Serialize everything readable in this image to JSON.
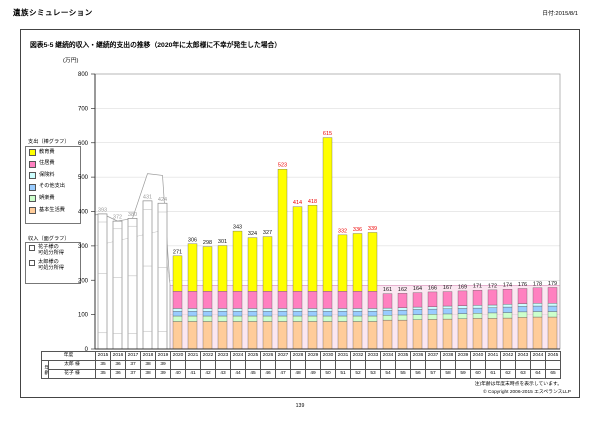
{
  "header": {
    "app_title": "遺族シミュレーション",
    "date_label": "日付:2015/8/1"
  },
  "figure": {
    "title": "図表5-5 継続的収入・継続的支出の推移（2020年に太郎様に不幸が発生した場合）"
  },
  "legend": {
    "expense": {
      "title": "支出（棒グラフ）",
      "items": [
        {
          "label": "教育費",
          "color": "#FFFF00"
        },
        {
          "label": "住居費",
          "color": "#FF80C0"
        },
        {
          "label": "保険料",
          "color": "#CCFFFF"
        },
        {
          "label": "その他支出",
          "color": "#99CCFF"
        },
        {
          "label": "娯楽費",
          "color": "#CCFFCC"
        },
        {
          "label": "基本生活費",
          "color": "#FFCC99"
        }
      ]
    },
    "income": {
      "title": "収入（面グラフ）",
      "items": [
        {
          "label": "花子様の\n可処分所得",
          "color": "#FFFFFF"
        },
        {
          "label": "太郎様の\n可処分所得",
          "color": "#FFFFFF"
        }
      ]
    }
  },
  "chart_data": {
    "type": "bar",
    "subtype": "stacked-bars-with-income-area",
    "unit_label": "(万円)",
    "ylim": [
      0,
      800
    ],
    "ytick_step": 100,
    "grid": true,
    "years": [
      2015,
      2016,
      2017,
      2018,
      2019,
      2020,
      2021,
      2022,
      2023,
      2024,
      2025,
      2026,
      2027,
      2028,
      2029,
      2030,
      2031,
      2032,
      2033,
      2034,
      2035,
      2036,
      2037,
      2038,
      2039,
      2040,
      2041,
      2042,
      2043,
      2044,
      2045
    ],
    "segment_order_bottom_up": [
      "基本生活費",
      "娯楽費",
      "その他支出",
      "保険料",
      "住居費",
      "教育費"
    ],
    "segment_colors": {
      "基本生活費": "#FFCC99",
      "娯楽費": "#CCFFCC",
      "その他支出": "#99CCFF",
      "保険料": "#CCFFFF",
      "住居費": "#FF80C0",
      "教育費": "#FFFF00"
    },
    "label_colors": {
      "gray": "#9b9b9b",
      "black": "#111111",
      "red": "#ee0000"
    },
    "bars": [
      {
        "year": 2015,
        "total": 393,
        "style": "outline",
        "label": "gray"
      },
      {
        "year": 2016,
        "total": 372,
        "style": "outline",
        "label": "gray"
      },
      {
        "year": 2017,
        "total": 380,
        "style": "outline",
        "label": "gray"
      },
      {
        "year": 2018,
        "total": 431,
        "style": "outline",
        "label": "gray"
      },
      {
        "year": 2019,
        "total": 424,
        "style": "outline",
        "label": "gray"
      },
      {
        "year": 2020,
        "total": 271,
        "style": "stacked",
        "label": "black",
        "segments": [
          80,
          16,
          14,
          8,
          50,
          103
        ]
      },
      {
        "year": 2021,
        "total": 306,
        "style": "stacked",
        "label": "black",
        "segments": [
          80,
          16,
          14,
          8,
          50,
          138
        ]
      },
      {
        "year": 2022,
        "total": 298,
        "style": "stacked",
        "label": "black",
        "segments": [
          80,
          16,
          14,
          8,
          50,
          130
        ]
      },
      {
        "year": 2023,
        "total": 301,
        "style": "stacked",
        "label": "black",
        "segments": [
          80,
          16,
          14,
          8,
          50,
          133
        ]
      },
      {
        "year": 2024,
        "total": 343,
        "style": "stacked",
        "label": "black",
        "segments": [
          80,
          16,
          14,
          8,
          50,
          175
        ]
      },
      {
        "year": 2025,
        "total": 324,
        "style": "stacked",
        "label": "black",
        "segments": [
          80,
          16,
          14,
          8,
          50,
          156
        ]
      },
      {
        "year": 2026,
        "total": 327,
        "style": "stacked",
        "label": "black",
        "segments": [
          80,
          16,
          14,
          8,
          50,
          159
        ]
      },
      {
        "year": 2027,
        "total": 523,
        "style": "stacked",
        "label": "red",
        "segments": [
          80,
          16,
          14,
          8,
          50,
          355
        ]
      },
      {
        "year": 2028,
        "total": 414,
        "style": "stacked",
        "label": "red",
        "segments": [
          80,
          16,
          14,
          8,
          50,
          246
        ]
      },
      {
        "year": 2029,
        "total": 418,
        "style": "stacked",
        "label": "red",
        "segments": [
          80,
          16,
          14,
          8,
          50,
          250
        ]
      },
      {
        "year": 2030,
        "total": 615,
        "style": "stacked",
        "label": "red",
        "segments": [
          80,
          16,
          14,
          8,
          50,
          447
        ]
      },
      {
        "year": 2031,
        "total": 332,
        "style": "stacked",
        "label": "red",
        "segments": [
          80,
          16,
          14,
          8,
          50,
          164
        ]
      },
      {
        "year": 2032,
        "total": 336,
        "style": "stacked",
        "label": "red",
        "segments": [
          80,
          16,
          14,
          8,
          50,
          168
        ]
      },
      {
        "year": 2033,
        "total": 339,
        "style": "stacked",
        "label": "red",
        "segments": [
          80,
          16,
          14,
          8,
          50,
          171
        ]
      },
      {
        "year": 2034,
        "total": 161,
        "style": "stacked",
        "label": "black",
        "segments": [
          84,
          14,
          14,
          7,
          42,
          0
        ]
      },
      {
        "year": 2035,
        "total": 162,
        "style": "stacked",
        "label": "black",
        "segments": [
          84,
          15,
          14,
          7,
          42,
          0
        ]
      },
      {
        "year": 2036,
        "total": 164,
        "style": "stacked",
        "label": "black",
        "segments": [
          85,
          15,
          15,
          7,
          42,
          0
        ]
      },
      {
        "year": 2037,
        "total": 166,
        "style": "stacked",
        "label": "black",
        "segments": [
          86,
          15,
          15,
          7,
          43,
          0
        ]
      },
      {
        "year": 2038,
        "total": 167,
        "style": "stacked",
        "label": "black",
        "segments": [
          87,
          15,
          15,
          8,
          42,
          0
        ]
      },
      {
        "year": 2039,
        "total": 169,
        "style": "stacked",
        "label": "black",
        "segments": [
          88,
          15,
          15,
          8,
          43,
          0
        ]
      },
      {
        "year": 2040,
        "total": 171,
        "style": "stacked",
        "label": "black",
        "segments": [
          89,
          15,
          15,
          8,
          44,
          0
        ]
      },
      {
        "year": 2041,
        "total": 172,
        "style": "stacked",
        "label": "black",
        "segments": [
          89,
          16,
          15,
          8,
          44,
          0
        ]
      },
      {
        "year": 2042,
        "total": 174,
        "style": "stacked",
        "label": "black",
        "segments": [
          90,
          16,
          16,
          8,
          44,
          0
        ]
      },
      {
        "year": 2043,
        "total": 176,
        "style": "stacked",
        "label": "black",
        "segments": [
          92,
          16,
          16,
          8,
          44,
          0
        ]
      },
      {
        "year": 2044,
        "total": 178,
        "style": "stacked",
        "label": "black",
        "segments": [
          93,
          16,
          16,
          8,
          45,
          0
        ]
      },
      {
        "year": 2045,
        "total": 179,
        "style": "stacked",
        "label": "black",
        "segments": [
          93,
          16,
          16,
          8,
          46,
          0
        ]
      }
    ],
    "income_area": {
      "combined_outline_approx": {
        "years": [
          2015,
          2016,
          2017,
          2018,
          2019
        ],
        "values": [
          393,
          372,
          380,
          510,
          505
        ],
        "fill": "#FFFFFF",
        "stroke": "#999999"
      },
      "hanako_after_approx": {
        "from_year": 2020,
        "to_year": 2045,
        "value": 185,
        "fill": "#FBE7F1",
        "stroke": "#D98EB8"
      }
    }
  },
  "age_table": {
    "corner_label": "年度",
    "group_label": "年齢",
    "rows": [
      {
        "label": "太郎 様",
        "ages": [
          35,
          36,
          37,
          38,
          39
        ]
      },
      {
        "label": "花子 様",
        "ages": [
          35,
          36,
          37,
          38,
          39,
          40,
          41,
          42,
          43,
          44,
          45,
          46,
          47,
          48,
          49,
          50,
          51,
          52,
          53,
          54,
          55,
          56,
          57,
          58,
          59,
          60,
          61,
          62,
          63,
          64,
          65
        ]
      }
    ],
    "note": "注)年齢は年度末時点を表示しています。"
  },
  "footer": {
    "copyright": "© Copyright 2006-2015 エスペランスLLP",
    "page_number": "139"
  }
}
